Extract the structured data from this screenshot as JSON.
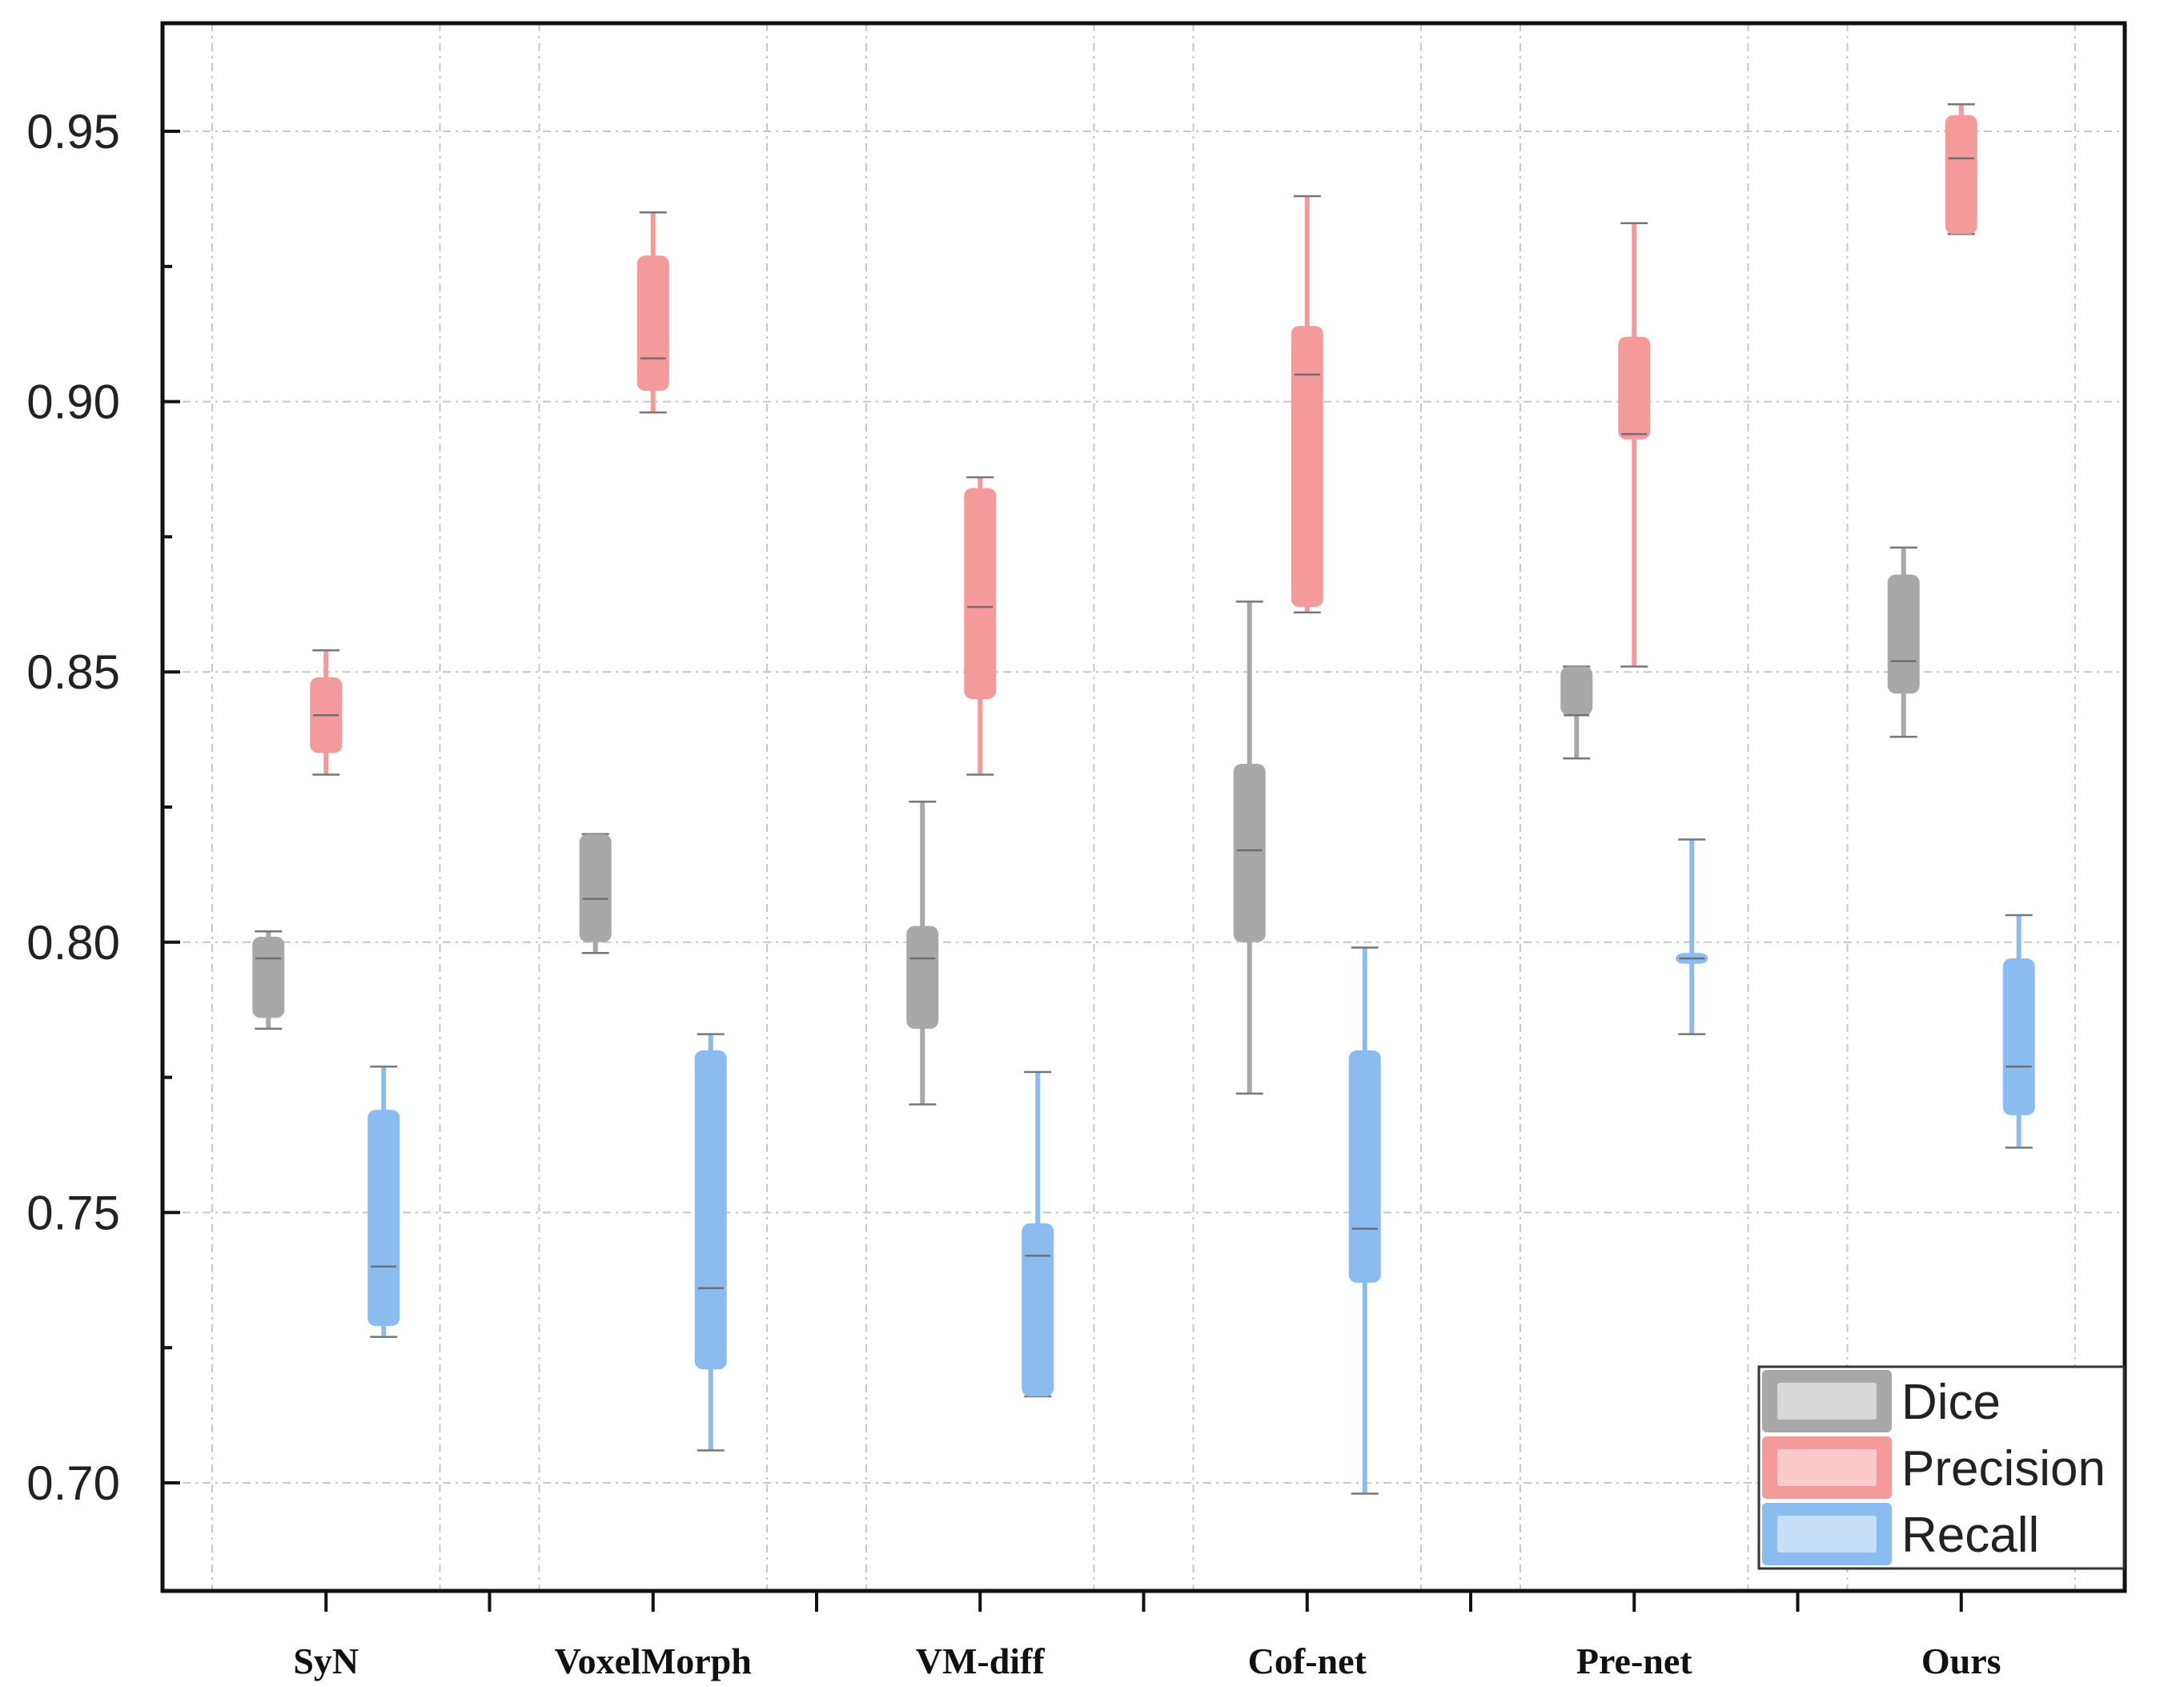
{
  "chart_data": {
    "type": "boxplot",
    "title": "",
    "xlabel": "",
    "ylabel": "",
    "ylim": [
      0.68,
      0.97
    ],
    "yticks": [
      0.7,
      0.75,
      0.8,
      0.85,
      0.9,
      0.95
    ],
    "ytick_labels": [
      "0.70",
      "0.75",
      "0.80",
      "0.85",
      "0.90",
      "0.95"
    ],
    "grid": true,
    "legend_position": "bottom-right",
    "categories": [
      "SyN",
      "VoxelMorph",
      "VM-diff",
      "Cof-net",
      "Pre-net",
      "Ours"
    ],
    "series": [
      {
        "name": "Dice",
        "color": "#a8a8a8",
        "stats": [
          {
            "min": 0.784,
            "q1": 0.786,
            "median": 0.797,
            "q3": 0.801,
            "max": 0.802
          },
          {
            "min": 0.798,
            "q1": 0.8,
            "median": 0.808,
            "q3": 0.82,
            "max": 0.82
          },
          {
            "min": 0.77,
            "q1": 0.784,
            "median": 0.797,
            "q3": 0.803,
            "max": 0.826
          },
          {
            "min": 0.772,
            "q1": 0.8,
            "median": 0.817,
            "q3": 0.833,
            "max": 0.863
          },
          {
            "min": 0.834,
            "q1": 0.842,
            "median": 0.842,
            "q3": 0.851,
            "max": 0.851
          },
          {
            "min": 0.838,
            "q1": 0.846,
            "median": 0.852,
            "q3": 0.868,
            "max": 0.873
          }
        ]
      },
      {
        "name": "Precision",
        "color": "#f59a9a",
        "stats": [
          {
            "min": 0.831,
            "q1": 0.835,
            "median": 0.842,
            "q3": 0.849,
            "max": 0.854
          },
          {
            "min": 0.898,
            "q1": 0.902,
            "median": 0.908,
            "q3": 0.927,
            "max": 0.935
          },
          {
            "min": 0.831,
            "q1": 0.845,
            "median": 0.862,
            "q3": 0.884,
            "max": 0.886
          },
          {
            "min": 0.861,
            "q1": 0.862,
            "median": 0.905,
            "q3": 0.914,
            "max": 0.938
          },
          {
            "min": 0.851,
            "q1": 0.893,
            "median": 0.894,
            "q3": 0.912,
            "max": 0.933
          },
          {
            "min": 0.931,
            "q1": 0.931,
            "median": 0.945,
            "q3": 0.953,
            "max": 0.955
          }
        ]
      },
      {
        "name": "Recall",
        "color": "#8bbcf0",
        "stats": [
          {
            "min": 0.727,
            "q1": 0.729,
            "median": 0.74,
            "q3": 0.769,
            "max": 0.777
          },
          {
            "min": 0.706,
            "q1": 0.721,
            "median": 0.736,
            "q3": 0.78,
            "max": 0.783
          },
          {
            "min": 0.716,
            "q1": 0.716,
            "median": 0.742,
            "q3": 0.748,
            "max": 0.776
          },
          {
            "min": 0.698,
            "q1": 0.737,
            "median": 0.747,
            "q3": 0.78,
            "max": 0.799
          },
          {
            "min": 0.783,
            "q1": 0.796,
            "median": 0.797,
            "q3": 0.798,
            "max": 0.819
          },
          {
            "min": 0.762,
            "q1": 0.768,
            "median": 0.777,
            "q3": 0.797,
            "max": 0.805
          }
        ]
      }
    ]
  },
  "colors": {
    "box_dice": "#a8a8a8",
    "box_precision": "#f59a9a",
    "box_recall": "#8bbcf0",
    "legend_dice_inner": "#d8d8d8",
    "legend_precision_inner": "#fccaca",
    "legend_recall_inner": "#c6dff9",
    "grid": "#c8c8c8",
    "axis": "#111111"
  }
}
